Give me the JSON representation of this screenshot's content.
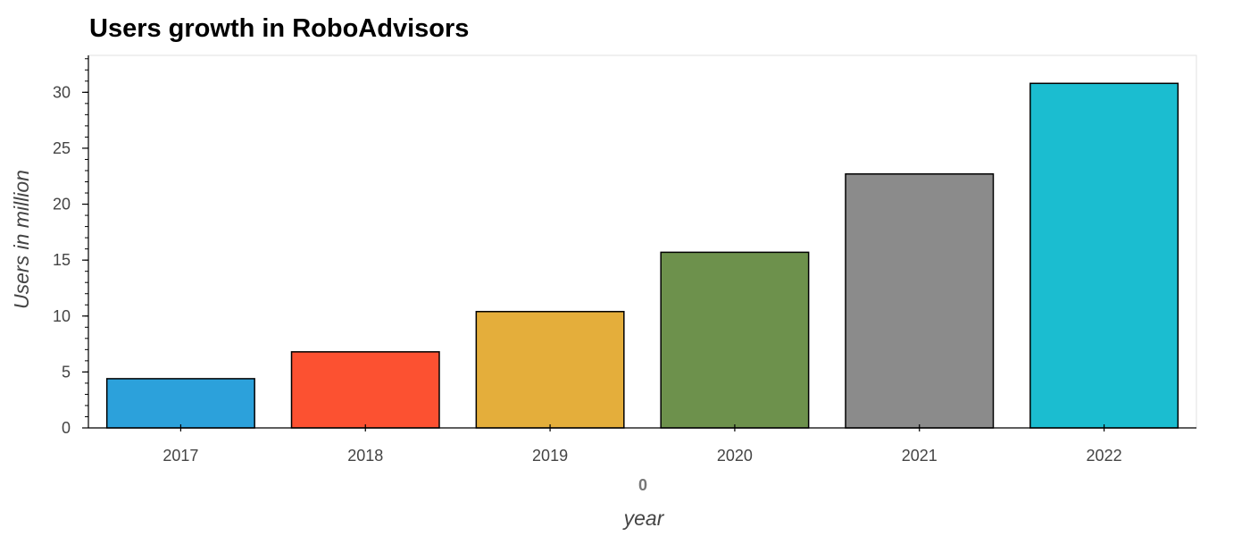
{
  "chart_data": {
    "type": "bar",
    "title": "Users growth in RoboAdvisors",
    "categories": [
      "2017",
      "2018",
      "2019",
      "2020",
      "2021",
      "2022"
    ],
    "values": [
      4.4,
      6.8,
      10.4,
      15.7,
      22.7,
      30.8
    ],
    "colors": [
      "#2ca1db",
      "#fc5131",
      "#e4ae3b",
      "#6d914c",
      "#8b8b8b",
      "#1bbdd0"
    ],
    "group_label": "0",
    "xlabel": "year",
    "ylabel": "Users in million",
    "ylim": [
      0,
      33.3
    ],
    "yticks": [
      0,
      5,
      10,
      15,
      20,
      25,
      30
    ],
    "grid": false,
    "legend": "none"
  }
}
